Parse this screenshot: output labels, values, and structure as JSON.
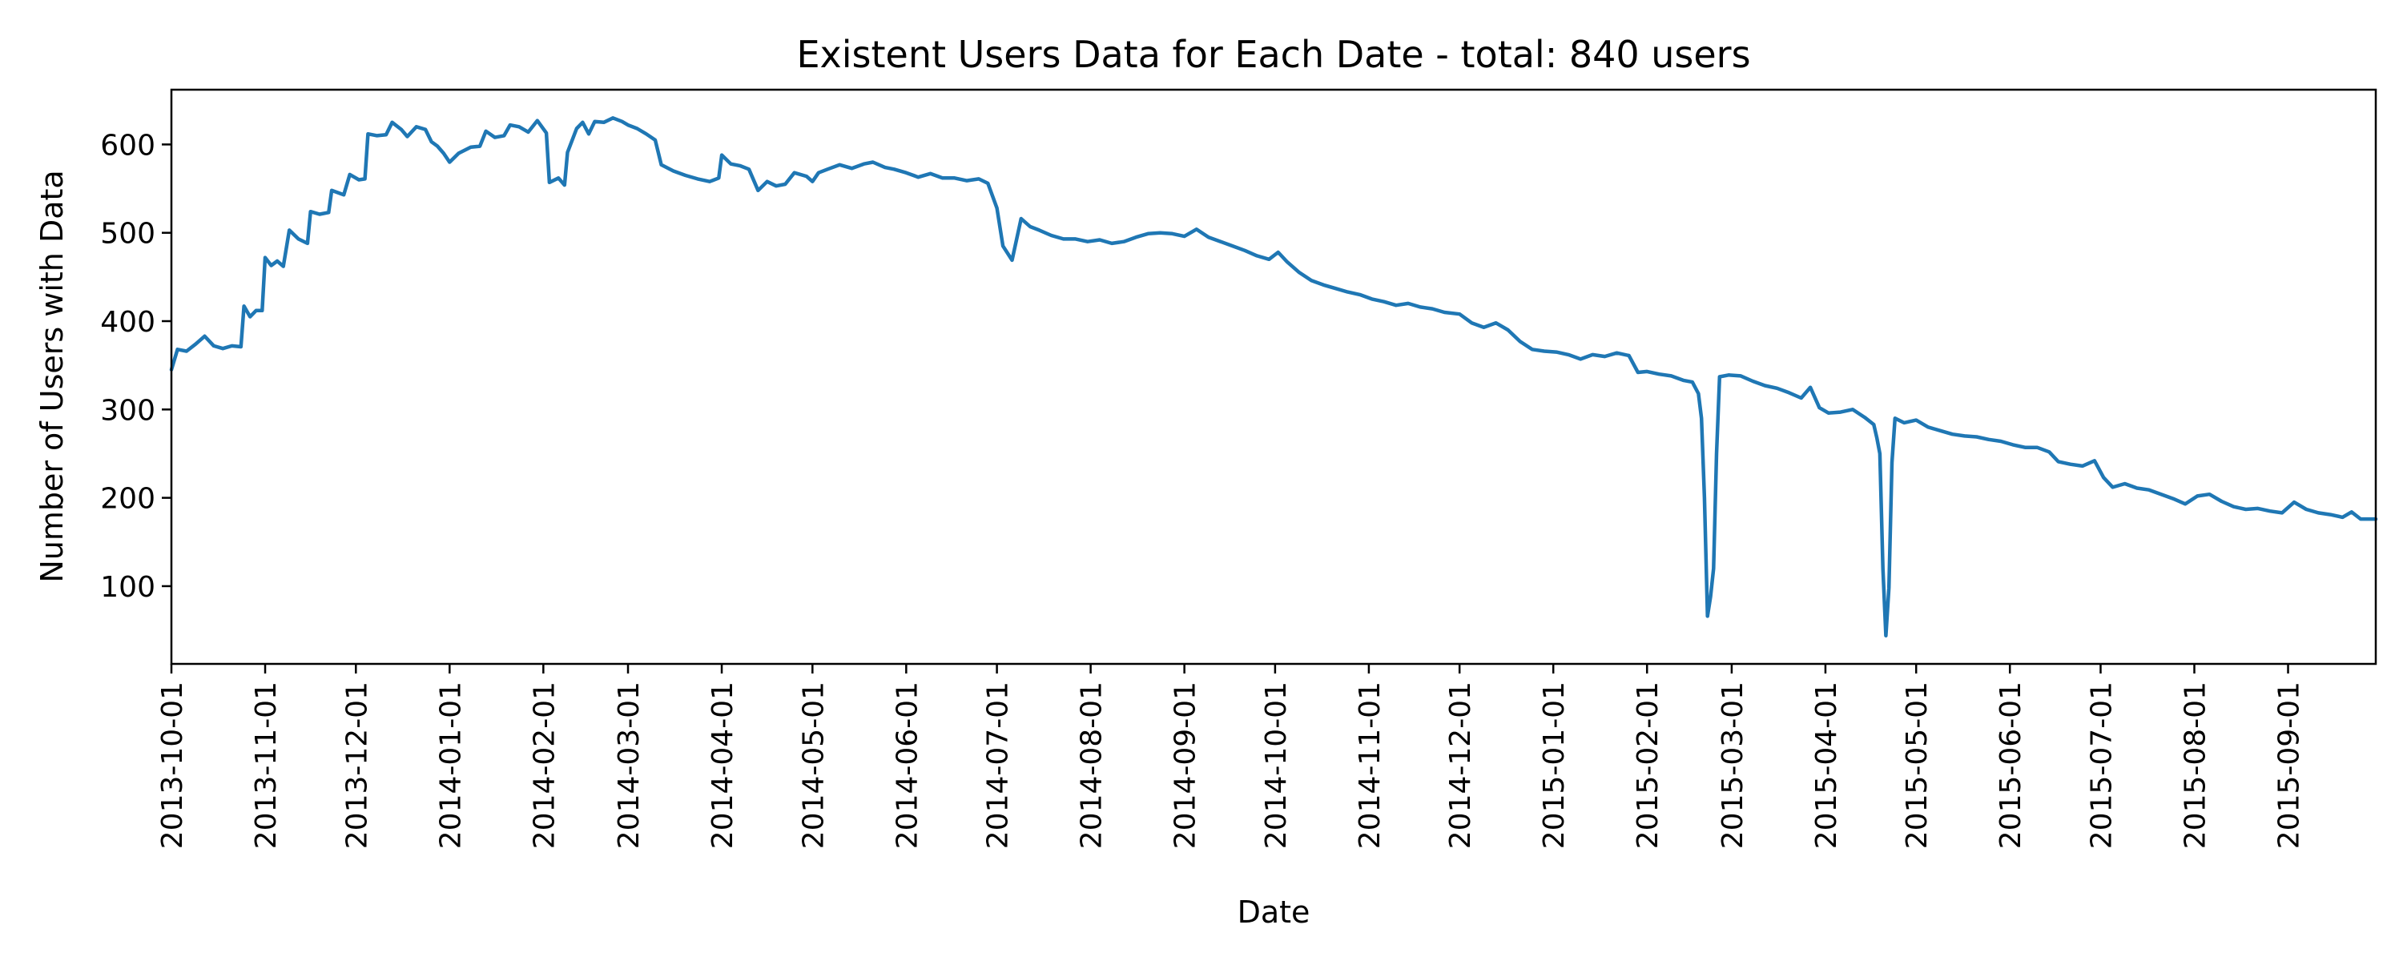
{
  "chart_data": {
    "type": "line",
    "title": "Existent Users Data for Each Date - total: 840 users",
    "xlabel": "Date",
    "ylabel": "Number of Users with Data",
    "x_range": [
      "2013-10-01",
      "2015-09-30"
    ],
    "ylim": [
      12,
      662
    ],
    "y_ticks": [
      100,
      200,
      300,
      400,
      500,
      600
    ],
    "x_ticks": [
      "2013-10-01",
      "2013-11-01",
      "2013-12-01",
      "2014-01-01",
      "2014-02-01",
      "2014-03-01",
      "2014-04-01",
      "2014-05-01",
      "2014-06-01",
      "2014-07-01",
      "2014-08-01",
      "2014-09-01",
      "2014-10-01",
      "2014-11-01",
      "2014-12-01",
      "2015-01-01",
      "2015-02-01",
      "2015-03-01",
      "2015-04-01",
      "2015-05-01",
      "2015-06-01",
      "2015-07-01",
      "2015-08-01",
      "2015-09-01"
    ],
    "grid": false,
    "line_color": "#1f77b4",
    "series": [
      {
        "points": [
          [
            "2013-10-01",
            345
          ],
          [
            "2013-10-03",
            368
          ],
          [
            "2013-10-06",
            366
          ],
          [
            "2013-10-09",
            374
          ],
          [
            "2013-10-12",
            383
          ],
          [
            "2013-10-15",
            372
          ],
          [
            "2013-10-18",
            369
          ],
          [
            "2013-10-21",
            372
          ],
          [
            "2013-10-24",
            371
          ],
          [
            "2013-10-25",
            417
          ],
          [
            "2013-10-27",
            405
          ],
          [
            "2013-10-29",
            412
          ],
          [
            "2013-10-31",
            412
          ],
          [
            "2013-11-01",
            472
          ],
          [
            "2013-11-03",
            463
          ],
          [
            "2013-11-05",
            468
          ],
          [
            "2013-11-07",
            462
          ],
          [
            "2013-11-09",
            503
          ],
          [
            "2013-11-12",
            493
          ],
          [
            "2013-11-15",
            488
          ],
          [
            "2013-11-16",
            524
          ],
          [
            "2013-11-19",
            521
          ],
          [
            "2013-11-22",
            523
          ],
          [
            "2013-11-23",
            548
          ],
          [
            "2013-11-27",
            543
          ],
          [
            "2013-11-29",
            566
          ],
          [
            "2013-12-02",
            560
          ],
          [
            "2013-12-04",
            561
          ],
          [
            "2013-12-05",
            612
          ],
          [
            "2013-12-08",
            610
          ],
          [
            "2013-12-11",
            611
          ],
          [
            "2013-12-13",
            625
          ],
          [
            "2013-12-16",
            617
          ],
          [
            "2013-12-18",
            609
          ],
          [
            "2013-12-21",
            620
          ],
          [
            "2013-12-24",
            617
          ],
          [
            "2013-12-26",
            603
          ],
          [
            "2013-12-28",
            598
          ],
          [
            "2013-12-30",
            590
          ],
          [
            "2014-01-01",
            580
          ],
          [
            "2014-01-04",
            590
          ],
          [
            "2014-01-08",
            597
          ],
          [
            "2014-01-11",
            598
          ],
          [
            "2014-01-13",
            615
          ],
          [
            "2014-01-16",
            608
          ],
          [
            "2014-01-19",
            610
          ],
          [
            "2014-01-21",
            622
          ],
          [
            "2014-01-24",
            620
          ],
          [
            "2014-01-27",
            614
          ],
          [
            "2014-01-30",
            627
          ],
          [
            "2014-02-02",
            613
          ],
          [
            "2014-02-03",
            557
          ],
          [
            "2014-02-06",
            562
          ],
          [
            "2014-02-08",
            554
          ],
          [
            "2014-02-09",
            591
          ],
          [
            "2014-02-12",
            618
          ],
          [
            "2014-02-14",
            625
          ],
          [
            "2014-02-16",
            612
          ],
          [
            "2014-02-18",
            626
          ],
          [
            "2014-02-21",
            625
          ],
          [
            "2014-02-24",
            630
          ],
          [
            "2014-02-27",
            626
          ],
          [
            "2014-03-01",
            622
          ],
          [
            "2014-03-04",
            618
          ],
          [
            "2014-03-07",
            612
          ],
          [
            "2014-03-10",
            605
          ],
          [
            "2014-03-12",
            577
          ],
          [
            "2014-03-16",
            570
          ],
          [
            "2014-03-20",
            565
          ],
          [
            "2014-03-24",
            561
          ],
          [
            "2014-03-28",
            558
          ],
          [
            "2014-03-31",
            562
          ],
          [
            "2014-04-01",
            588
          ],
          [
            "2014-04-04",
            578
          ],
          [
            "2014-04-07",
            576
          ],
          [
            "2014-04-10",
            572
          ],
          [
            "2014-04-13",
            548
          ],
          [
            "2014-04-16",
            558
          ],
          [
            "2014-04-19",
            553
          ],
          [
            "2014-04-22",
            555
          ],
          [
            "2014-04-25",
            568
          ],
          [
            "2014-04-29",
            564
          ],
          [
            "2014-05-01",
            558
          ],
          [
            "2014-05-03",
            568
          ],
          [
            "2014-05-06",
            572
          ],
          [
            "2014-05-10",
            577
          ],
          [
            "2014-05-14",
            573
          ],
          [
            "2014-05-18",
            578
          ],
          [
            "2014-05-21",
            580
          ],
          [
            "2014-05-25",
            574
          ],
          [
            "2014-05-28",
            572
          ],
          [
            "2014-06-01",
            568
          ],
          [
            "2014-06-05",
            563
          ],
          [
            "2014-06-09",
            567
          ],
          [
            "2014-06-13",
            562
          ],
          [
            "2014-06-17",
            562
          ],
          [
            "2014-06-21",
            559
          ],
          [
            "2014-06-25",
            561
          ],
          [
            "2014-06-28",
            556
          ],
          [
            "2014-07-01",
            528
          ],
          [
            "2014-07-03",
            485
          ],
          [
            "2014-07-06",
            469
          ],
          [
            "2014-07-09",
            516
          ],
          [
            "2014-07-12",
            507
          ],
          [
            "2014-07-15",
            503
          ],
          [
            "2014-07-19",
            497
          ],
          [
            "2014-07-23",
            493
          ],
          [
            "2014-07-27",
            493
          ],
          [
            "2014-07-31",
            490
          ],
          [
            "2014-08-04",
            492
          ],
          [
            "2014-08-08",
            488
          ],
          [
            "2014-08-12",
            490
          ],
          [
            "2014-08-16",
            495
          ],
          [
            "2014-08-20",
            499
          ],
          [
            "2014-08-24",
            500
          ],
          [
            "2014-08-28",
            499
          ],
          [
            "2014-09-01",
            496
          ],
          [
            "2014-09-05",
            504
          ],
          [
            "2014-09-09",
            495
          ],
          [
            "2014-09-13",
            490
          ],
          [
            "2014-09-17",
            485
          ],
          [
            "2014-09-21",
            480
          ],
          [
            "2014-09-25",
            474
          ],
          [
            "2014-09-29",
            470
          ],
          [
            "2014-10-02",
            478
          ],
          [
            "2014-10-05",
            467
          ],
          [
            "2014-10-09",
            455
          ],
          [
            "2014-10-13",
            446
          ],
          [
            "2014-10-17",
            441
          ],
          [
            "2014-10-21",
            437
          ],
          [
            "2014-10-25",
            433
          ],
          [
            "2014-10-29",
            430
          ],
          [
            "2014-11-02",
            425
          ],
          [
            "2014-11-06",
            422
          ],
          [
            "2014-11-10",
            418
          ],
          [
            "2014-11-14",
            420
          ],
          [
            "2014-11-18",
            416
          ],
          [
            "2014-11-22",
            414
          ],
          [
            "2014-11-26",
            410
          ],
          [
            "2014-12-01",
            408
          ],
          [
            "2014-12-05",
            398
          ],
          [
            "2014-12-09",
            393
          ],
          [
            "2014-12-13",
            398
          ],
          [
            "2014-12-17",
            390
          ],
          [
            "2014-12-21",
            377
          ],
          [
            "2014-12-25",
            368
          ],
          [
            "2014-12-29",
            366
          ],
          [
            "2015-01-02",
            365
          ],
          [
            "2015-01-06",
            362
          ],
          [
            "2015-01-10",
            357
          ],
          [
            "2015-01-14",
            362
          ],
          [
            "2015-01-18",
            360
          ],
          [
            "2015-01-22",
            364
          ],
          [
            "2015-01-26",
            361
          ],
          [
            "2015-01-29",
            342
          ],
          [
            "2015-02-01",
            343
          ],
          [
            "2015-02-05",
            340
          ],
          [
            "2015-02-09",
            338
          ],
          [
            "2015-02-13",
            333
          ],
          [
            "2015-02-16",
            331
          ],
          [
            "2015-02-18",
            318
          ],
          [
            "2015-02-19",
            290
          ],
          [
            "2015-02-20",
            200
          ],
          [
            "2015-02-21",
            66
          ],
          [
            "2015-02-22",
            88
          ],
          [
            "2015-02-23",
            120
          ],
          [
            "2015-02-24",
            250
          ],
          [
            "2015-02-25",
            337
          ],
          [
            "2015-02-28",
            339
          ],
          [
            "2015-03-04",
            338
          ],
          [
            "2015-03-08",
            332
          ],
          [
            "2015-03-12",
            327
          ],
          [
            "2015-03-16",
            324
          ],
          [
            "2015-03-20",
            319
          ],
          [
            "2015-03-24",
            313
          ],
          [
            "2015-03-27",
            325
          ],
          [
            "2015-03-30",
            302
          ],
          [
            "2015-04-02",
            296
          ],
          [
            "2015-04-06",
            297
          ],
          [
            "2015-04-10",
            300
          ],
          [
            "2015-04-14",
            291
          ],
          [
            "2015-04-17",
            283
          ],
          [
            "2015-04-18",
            268
          ],
          [
            "2015-04-19",
            250
          ],
          [
            "2015-04-20",
            120
          ],
          [
            "2015-04-21",
            44
          ],
          [
            "2015-04-22",
            98
          ],
          [
            "2015-04-23",
            240
          ],
          [
            "2015-04-24",
            290
          ],
          [
            "2015-04-27",
            285
          ],
          [
            "2015-05-01",
            288
          ],
          [
            "2015-05-05",
            280
          ],
          [
            "2015-05-09",
            276
          ],
          [
            "2015-05-13",
            272
          ],
          [
            "2015-05-17",
            270
          ],
          [
            "2015-05-21",
            269
          ],
          [
            "2015-05-25",
            266
          ],
          [
            "2015-05-29",
            264
          ],
          [
            "2015-06-02",
            260
          ],
          [
            "2015-06-06",
            257
          ],
          [
            "2015-06-10",
            257
          ],
          [
            "2015-06-14",
            252
          ],
          [
            "2015-06-17",
            241
          ],
          [
            "2015-06-21",
            238
          ],
          [
            "2015-06-25",
            236
          ],
          [
            "2015-06-29",
            242
          ],
          [
            "2015-07-02",
            223
          ],
          [
            "2015-07-05",
            212
          ],
          [
            "2015-07-09",
            216
          ],
          [
            "2015-07-13",
            211
          ],
          [
            "2015-07-17",
            209
          ],
          [
            "2015-07-21",
            204
          ],
          [
            "2015-07-25",
            199
          ],
          [
            "2015-07-29",
            193
          ],
          [
            "2015-08-02",
            202
          ],
          [
            "2015-08-06",
            204
          ],
          [
            "2015-08-10",
            196
          ],
          [
            "2015-08-14",
            190
          ],
          [
            "2015-08-18",
            187
          ],
          [
            "2015-08-22",
            188
          ],
          [
            "2015-08-26",
            185
          ],
          [
            "2015-08-30",
            183
          ],
          [
            "2015-09-03",
            195
          ],
          [
            "2015-09-07",
            187
          ],
          [
            "2015-09-11",
            183
          ],
          [
            "2015-09-15",
            181
          ],
          [
            "2015-09-19",
            178
          ],
          [
            "2015-09-22",
            184
          ],
          [
            "2015-09-25",
            176
          ],
          [
            "2015-09-30",
            176
          ]
        ]
      }
    ]
  }
}
